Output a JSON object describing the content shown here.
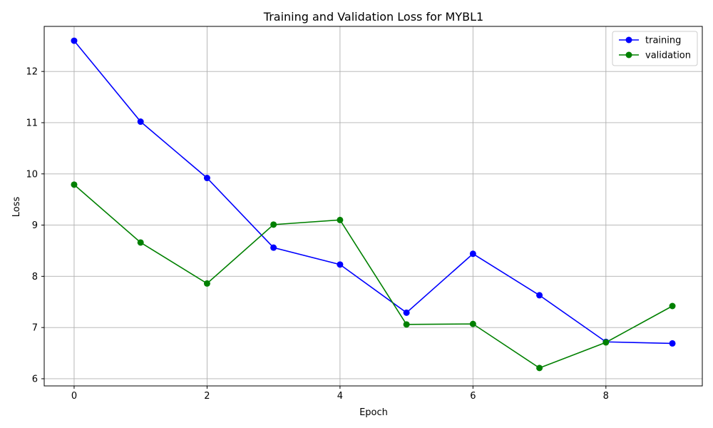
{
  "chart_data": {
    "type": "line",
    "title": "Training and Validation Loss for MYBL1",
    "xlabel": "Epoch",
    "ylabel": "Loss",
    "xlim": [
      -0.45,
      9.45
    ],
    "ylim": [
      5.86,
      12.88
    ],
    "xticks": [
      0,
      2,
      4,
      6,
      8
    ],
    "yticks": [
      6,
      7,
      8,
      9,
      10,
      11,
      12
    ],
    "grid": true,
    "legend_position": "top-right",
    "x": [
      0,
      1,
      2,
      3,
      4,
      5,
      6,
      7,
      8,
      9
    ],
    "series": [
      {
        "name": "training",
        "color": "#0000ff",
        "values": [
          12.6,
          11.02,
          9.92,
          8.56,
          8.23,
          7.29,
          8.44,
          7.63,
          6.72,
          6.69
        ]
      },
      {
        "name": "validation",
        "color": "#008000",
        "values": [
          9.79,
          8.66,
          7.86,
          9.01,
          9.1,
          7.06,
          7.07,
          6.21,
          6.71,
          7.42
        ]
      }
    ]
  }
}
